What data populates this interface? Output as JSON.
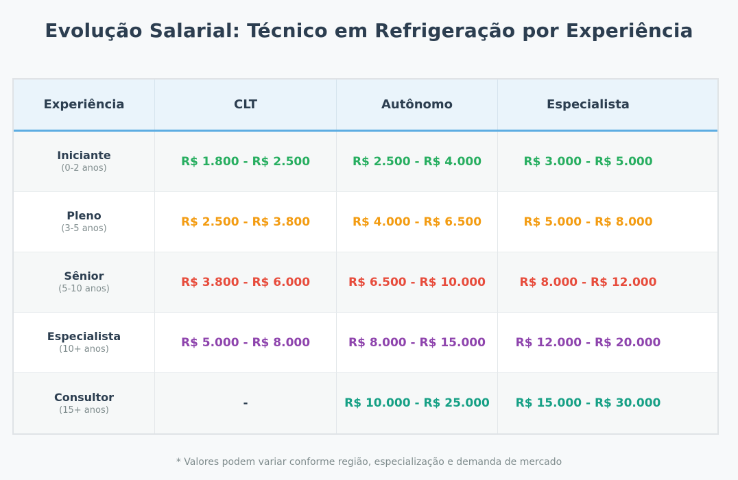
{
  "page": {
    "title": "Evolução Salarial: Técnico em Refrigeração por Experiência",
    "footnote": "* Valores podem variar conforme região, especialização e demanda de mercado"
  },
  "table": {
    "headers": [
      "Experiência",
      "CLT",
      "Autônomo",
      "Especialista"
    ],
    "rows": [
      {
        "level": "Iniciante",
        "years": "(0-2 anos)",
        "color": "#27ae60",
        "values": [
          "R$ 1.800 - R$ 2.500",
          "R$ 2.500 - R$ 4.000",
          "R$ 3.000 - R$ 5.000"
        ]
      },
      {
        "level": "Pleno",
        "years": "(3-5 anos)",
        "color": "#f39c12",
        "values": [
          "R$ 2.500 - R$ 3.800",
          "R$ 4.000 - R$ 6.500",
          "R$ 5.000 - R$ 8.000"
        ]
      },
      {
        "level": "Sênior",
        "years": "(5-10 anos)",
        "color": "#e74c3c",
        "values": [
          "R$ 3.800 - R$ 6.000",
          "R$ 6.500 - R$ 10.000",
          "R$ 8.000 - R$ 12.000"
        ]
      },
      {
        "level": "Especialista",
        "years": "(10+ anos)",
        "color": "#8e44ad",
        "values": [
          "R$ 5.000 - R$ 8.000",
          "R$ 8.000 - R$ 15.000",
          "R$ 12.000 - R$ 20.000"
        ]
      },
      {
        "level": "Consultor",
        "years": "(15+ anos)",
        "color": "#16a085",
        "values": [
          "-",
          "R$ 10.000 - R$ 25.000",
          "R$ 15.000 - R$ 30.000"
        ]
      }
    ]
  },
  "colors": {
    "title": "#2c3e50",
    "header_bg": "#eaf4fb",
    "header_border": "#5dade2",
    "dash": "#2c3e50"
  }
}
